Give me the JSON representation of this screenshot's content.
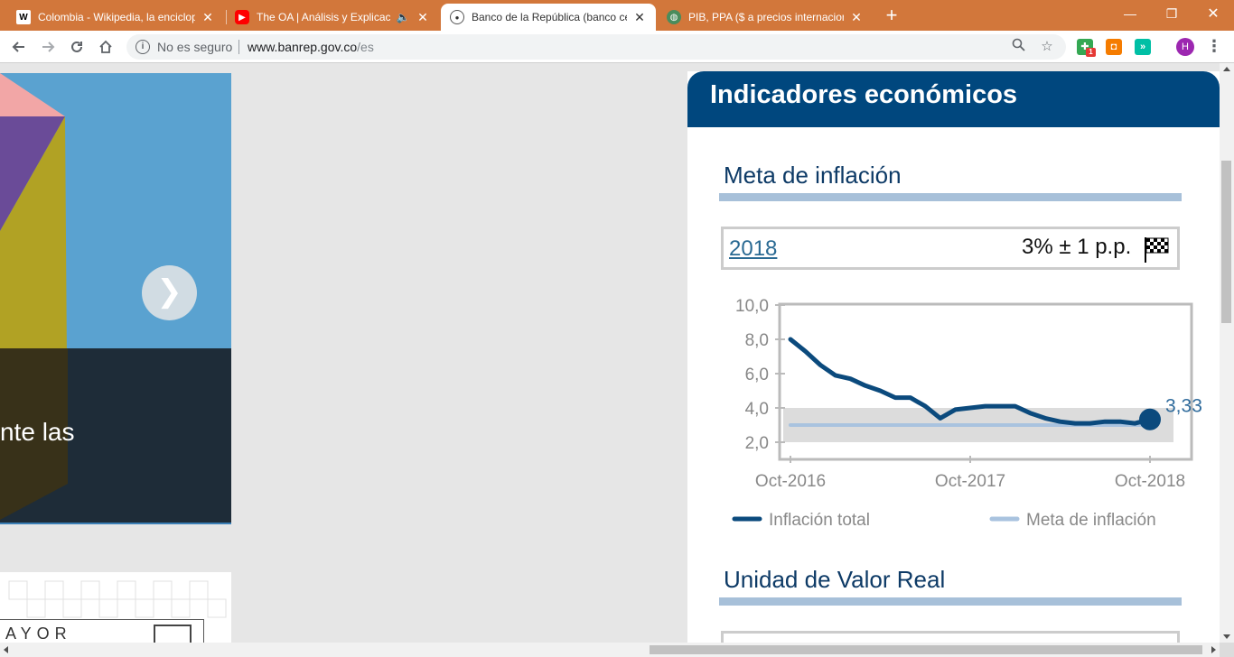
{
  "browser": {
    "tabs": [
      {
        "title": "Colombia - Wikipedia, la enciclop",
        "icon": "wikipedia-icon",
        "active": false
      },
      {
        "title": "The OA | Análisis y Explicació",
        "icon": "youtube-icon",
        "active": false,
        "audio": true
      },
      {
        "title": "Banco de la República (banco cen",
        "icon": "banrep-icon",
        "active": true
      },
      {
        "title": "PIB, PPA ($ a precios internaciona",
        "icon": "globe-icon",
        "active": false
      }
    ],
    "new_tab_label": "+",
    "security_label": "No es seguro",
    "url_host": "www.banrep.gov.co",
    "url_path": "/es",
    "profile_initial": "H",
    "extension_badge": "1"
  },
  "carousel": {
    "caption": "nte las",
    "next_glyph": "❯"
  },
  "promo": {
    "text": "AYOR"
  },
  "indicators": {
    "title": "Indicadores económicos",
    "inflation_section_title": "Meta de inflación",
    "target_year": "2018",
    "target_value": "3% ± 1 p.p.",
    "uvr_section_title": "Unidad de Valor Real"
  },
  "colors": {
    "tabbar": "#d2773b",
    "panel_header": "#00477e",
    "section_title": "#0d3a66",
    "section_rule": "#a7c0d9",
    "series_inflation": "#0b4a7d",
    "series_target": "#a9c3df",
    "target_band": "#dcdcdc",
    "carousel_blue": "#5aa2d0",
    "carousel_dark": "#1e2c38"
  },
  "chart_data": {
    "type": "line",
    "x_ticks": [
      "Oct-2016",
      "Oct-2017",
      "Oct-2018"
    ],
    "y_ticks": [
      "2,0",
      "4,0",
      "6,0",
      "8,0",
      "10,0"
    ],
    "ylim": [
      1,
      10
    ],
    "grid": false,
    "legend_position": "bottom",
    "last_value_label": "3,33",
    "target_band": [
      2,
      4
    ],
    "series": [
      {
        "name": "Inflación total",
        "values": [
          8.0,
          7.3,
          6.5,
          5.9,
          5.7,
          5.3,
          5.0,
          4.6,
          4.6,
          4.1,
          3.4,
          3.9,
          4.0,
          4.1,
          4.1,
          4.1,
          3.7,
          3.4,
          3.2,
          3.1,
          3.1,
          3.2,
          3.2,
          3.1,
          3.33
        ]
      },
      {
        "name": "Meta de inflación",
        "values": [
          3.0,
          3.0,
          3.0,
          3.0,
          3.0,
          3.0,
          3.0,
          3.0,
          3.0,
          3.0,
          3.0,
          3.0,
          3.0,
          3.0,
          3.0,
          3.0,
          3.0,
          3.0,
          3.0,
          3.0,
          3.0,
          3.0,
          3.0,
          3.0,
          3.0
        ]
      }
    ]
  }
}
